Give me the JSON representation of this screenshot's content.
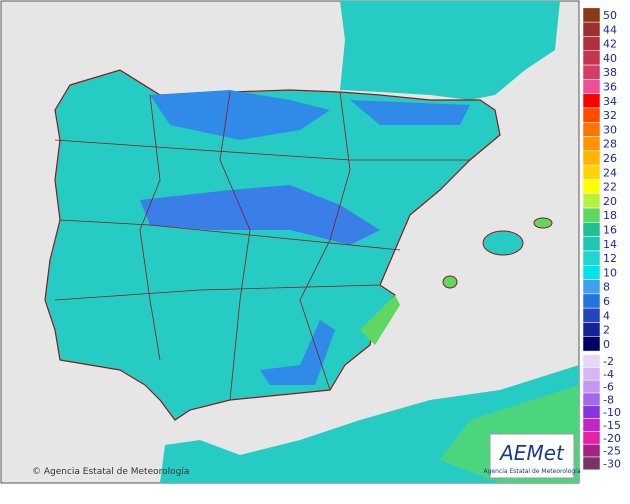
{
  "legend": {
    "positive": [
      {
        "value": 50,
        "color": "#8b3a14"
      },
      {
        "value": 44,
        "color": "#9c2f2f"
      },
      {
        "value": 42,
        "color": "#b0303f"
      },
      {
        "value": 40,
        "color": "#c2364f"
      },
      {
        "value": 38,
        "color": "#d43e66"
      },
      {
        "value": 36,
        "color": "#ee4f96"
      },
      {
        "value": 34,
        "color": "#ff0000"
      },
      {
        "value": 32,
        "color": "#ff4a00"
      },
      {
        "value": 30,
        "color": "#ff7400"
      },
      {
        "value": 28,
        "color": "#ff9400"
      },
      {
        "value": 26,
        "color": "#ffb400"
      },
      {
        "value": 24,
        "color": "#ffd400"
      },
      {
        "value": 22,
        "color": "#ffff00"
      },
      {
        "value": 20,
        "color": "#b8f040"
      },
      {
        "value": 18,
        "color": "#5ed860"
      },
      {
        "value": 16,
        "color": "#20c090"
      },
      {
        "value": 14,
        "color": "#22c4b4"
      },
      {
        "value": 12,
        "color": "#22d4d4"
      },
      {
        "value": 10,
        "color": "#00e4e8"
      },
      {
        "value": 8,
        "color": "#3ea0f0"
      },
      {
        "value": 6,
        "color": "#2474e0"
      },
      {
        "value": 4,
        "color": "#2444c0"
      },
      {
        "value": 2,
        "color": "#142494"
      },
      {
        "value": 0,
        "color": "#000064"
      }
    ],
    "negative": [
      {
        "value": -2,
        "color": "#e4d8f4"
      },
      {
        "value": -4,
        "color": "#d4b8f4"
      },
      {
        "value": -6,
        "color": "#c298f2"
      },
      {
        "value": -8,
        "color": "#a468f0"
      },
      {
        "value": -10,
        "color": "#8434e0"
      },
      {
        "value": -15,
        "color": "#c424c4"
      },
      {
        "value": -20,
        "color": "#e424a4"
      },
      {
        "value": -25,
        "color": "#a42484"
      },
      {
        "value": -30,
        "color": "#743464"
      }
    ]
  },
  "copyright": "© Agencia Estatal de Meteorología",
  "logo": {
    "brand": "AEMet",
    "subtitle": "Agencia Estatal de Meteorología"
  }
}
